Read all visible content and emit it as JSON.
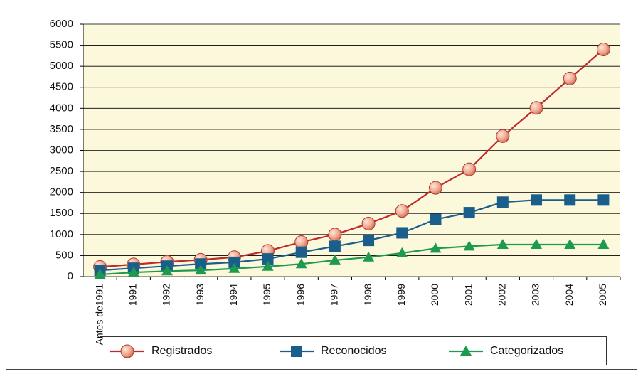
{
  "chart_data": {
    "type": "line",
    "categories": [
      "Antes de1991",
      "1991",
      "1992",
      "1993",
      "1994",
      "1995",
      "1996",
      "1997",
      "1998",
      "1999",
      "2000",
      "2001",
      "2002",
      "2003",
      "2004",
      "2005"
    ],
    "series": [
      {
        "name": "Registrados",
        "color": "#c0282a",
        "marker": "circle",
        "values": [
          230,
          290,
          350,
          400,
          460,
          610,
          820,
          1000,
          1260,
          1560,
          2110,
          2550,
          3340,
          4010,
          4710,
          5400
        ]
      },
      {
        "name": "Reconocidos",
        "color": "#1a5e8c",
        "marker": "square",
        "values": [
          150,
          200,
          250,
          300,
          340,
          420,
          580,
          720,
          860,
          1040,
          1360,
          1520,
          1770,
          1820,
          1820,
          1820
        ]
      },
      {
        "name": "Categorizados",
        "color": "#1e9a50",
        "marker": "triangle",
        "values": [
          50,
          100,
          130,
          150,
          190,
          240,
          300,
          390,
          460,
          560,
          670,
          720,
          760,
          760,
          760,
          760
        ]
      }
    ],
    "ylim": [
      0,
      6000
    ],
    "yticks": [
      0,
      500,
      1000,
      1500,
      2000,
      2500,
      3000,
      3500,
      4000,
      4500,
      5000,
      5500,
      6000
    ],
    "grid": true,
    "legend": "bottom"
  }
}
